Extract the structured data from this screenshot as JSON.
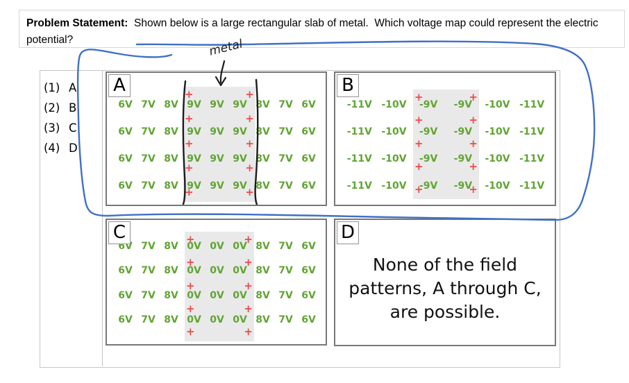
{
  "problem": {
    "label": "Problem Statement:",
    "text": "  Shown below is a large rectangular slab of metal.  Which voltage map could represent the electric potential?"
  },
  "choices": [
    {
      "number": "(1)",
      "letter": "A"
    },
    {
      "number": "(2)",
      "letter": "B"
    },
    {
      "number": "(3)",
      "letter": "C"
    },
    {
      "number": "(4)",
      "letter": "D"
    }
  ],
  "annotations": {
    "metal_label": "metal",
    "circled_answer": "panels A and B circled in blue pen"
  },
  "panels": {
    "A": {
      "label": "A",
      "rows": [
        [
          "6V",
          "7V",
          "8V",
          "9V",
          "9V",
          "9V",
          "8V",
          "7V",
          "6V"
        ],
        [
          "6V",
          "7V",
          "8V",
          "9V",
          "9V",
          "9V",
          "8V",
          "7V",
          "6V"
        ],
        [
          "6V",
          "7V",
          "8V",
          "9V",
          "9V",
          "9V",
          "8V",
          "7V",
          "6V"
        ],
        [
          "6V",
          "7V",
          "8V",
          "9V",
          "9V",
          "9V",
          "8V",
          "7V",
          "6V"
        ]
      ],
      "plus_symbol": "+",
      "plus_count": 5
    },
    "B": {
      "label": "B",
      "rows": [
        [
          "-11V",
          "-10V",
          "-9V",
          "-9V",
          "-10V",
          "-11V"
        ],
        [
          "-11V",
          "-10V",
          "-9V",
          "-9V",
          "-10V",
          "-11V"
        ],
        [
          "-11V",
          "-10V",
          "-9V",
          "-9V",
          "-10V",
          "-11V"
        ],
        [
          "-11V",
          "-10V",
          "-9V",
          "-9V",
          "-10V",
          "-11V"
        ]
      ],
      "plus_symbol": "+",
      "plus_count": 5
    },
    "C": {
      "label": "C",
      "rows": [
        [
          "6V",
          "7V",
          "8V",
          "0V",
          "0V",
          "0V",
          "8V",
          "7V",
          "6V"
        ],
        [
          "6V",
          "7V",
          "8V",
          "0V",
          "0V",
          "0V",
          "8V",
          "7V",
          "6V"
        ],
        [
          "6V",
          "7V",
          "8V",
          "0V",
          "0V",
          "0V",
          "8V",
          "7V",
          "6V"
        ],
        [
          "6V",
          "7V",
          "8V",
          "0V",
          "0V",
          "0V",
          "8V",
          "7V",
          "6V"
        ]
      ],
      "plus_symbol": "+",
      "plus_count": 5
    },
    "D": {
      "label": "D",
      "text": "None of the field patterns, A through C, are possible."
    }
  },
  "colors": {
    "voltage_green": "#61a433",
    "plus_red": "#f04848",
    "slab_gray": "#e9e9e9",
    "pen_blue": "#3f6fc8",
    "ink_black": "#1c1c1c"
  }
}
